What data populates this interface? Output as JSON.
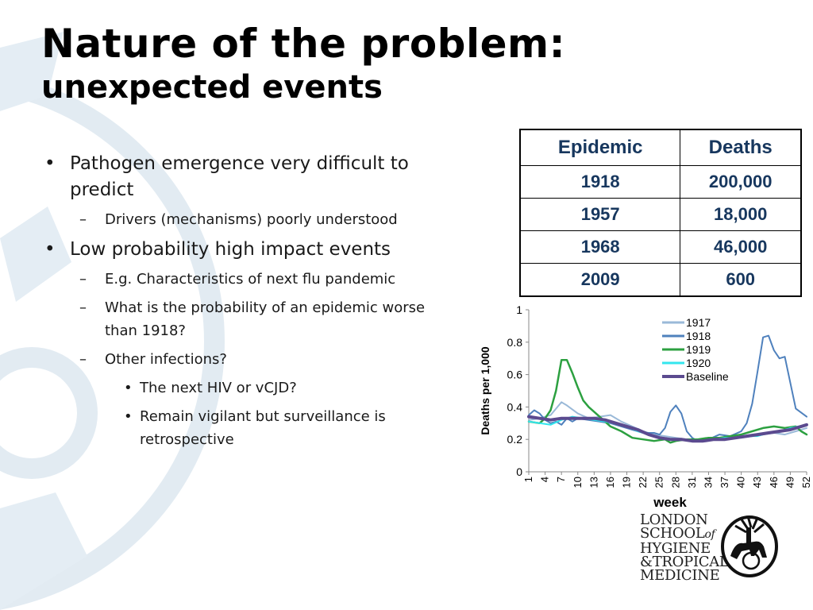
{
  "title": {
    "line1": "Nature of the problem:",
    "line2": "unexpected events"
  },
  "bullets": {
    "b1": "Pathogen emergence very difficult to predict",
    "b1_1": "Drivers (mechanisms) poorly understood",
    "b2": "Low probability high impact events",
    "b2_1": "E.g. Characteristics of next flu pandemic",
    "b2_2": "What is the probability of an epidemic worse than 1918?",
    "b2_3": "Other infections?",
    "b2_3_1": "The next HIV or vCJD?",
    "b2_3_2": "Remain vigilant but surveillance is retrospective"
  },
  "table": {
    "headers": [
      "Epidemic",
      "Deaths"
    ],
    "rows": [
      [
        "1918",
        "200,000"
      ],
      [
        "1957",
        "18,000"
      ],
      [
        "1968",
        "46,000"
      ],
      [
        "2009",
        "600"
      ]
    ]
  },
  "logo": {
    "lines": [
      "LONDON",
      "SCHOOL",
      "of",
      "HYGIENE",
      "&TROPICAL",
      "MEDICINE"
    ],
    "seal": "school-seal"
  },
  "chart_data": {
    "type": "line",
    "ylabel": "Deaths per 1,000",
    "xlabel": "week",
    "ylim": [
      0,
      1
    ],
    "yticks": [
      0,
      0.2,
      0.4,
      0.6,
      0.8,
      1
    ],
    "ytick_labels": [
      "0",
      "0.2",
      "0.4",
      "0.6",
      "0.8",
      "1"
    ],
    "xticks": [
      1,
      4,
      7,
      10,
      13,
      16,
      19,
      22,
      25,
      28,
      31,
      34,
      37,
      40,
      43,
      46,
      49,
      52
    ],
    "xlim": [
      1,
      52
    ],
    "legend_position": "top-right",
    "series": [
      {
        "name": "1917",
        "color": "#9ab9d8",
        "width": 2,
        "x": [
          1,
          3,
          5,
          7,
          8,
          10,
          12,
          14,
          16,
          18,
          20,
          22,
          24,
          26,
          28,
          30,
          32,
          34,
          36,
          38,
          40,
          42,
          44,
          46,
          48,
          50,
          52
        ],
        "y": [
          0.32,
          0.33,
          0.35,
          0.43,
          0.41,
          0.36,
          0.33,
          0.34,
          0.35,
          0.31,
          0.28,
          0.25,
          0.23,
          0.22,
          0.21,
          0.2,
          0.2,
          0.2,
          0.21,
          0.22,
          0.21,
          0.22,
          0.23,
          0.24,
          0.23,
          0.25,
          0.27
        ]
      },
      {
        "name": "1918",
        "color": "#4f81bd",
        "width": 2,
        "x": [
          1,
          2,
          3,
          4,
          5,
          6,
          7,
          8,
          9,
          10,
          12,
          14,
          16,
          18,
          20,
          22,
          24,
          25,
          26,
          27,
          28,
          29,
          30,
          31,
          32,
          34,
          36,
          38,
          40,
          41,
          42,
          43,
          44,
          45,
          46,
          47,
          48,
          50,
          52
        ],
        "y": [
          0.35,
          0.38,
          0.36,
          0.32,
          0.3,
          0.31,
          0.29,
          0.33,
          0.31,
          0.33,
          0.32,
          0.31,
          0.3,
          0.28,
          0.26,
          0.24,
          0.24,
          0.23,
          0.27,
          0.37,
          0.41,
          0.36,
          0.25,
          0.21,
          0.19,
          0.2,
          0.23,
          0.22,
          0.25,
          0.3,
          0.42,
          0.62,
          0.83,
          0.84,
          0.75,
          0.7,
          0.71,
          0.39,
          0.34
        ]
      },
      {
        "name": "1919",
        "color": "#2ca040",
        "width": 2.5,
        "x": [
          1,
          3,
          4,
          5,
          6,
          7,
          8,
          9,
          10,
          11,
          12,
          14,
          16,
          18,
          20,
          22,
          24,
          26,
          27,
          28,
          30,
          32,
          34,
          36,
          38,
          40,
          42,
          44,
          46,
          48,
          50,
          51,
          52
        ],
        "y": [
          0.31,
          0.3,
          0.33,
          0.38,
          0.5,
          0.69,
          0.69,
          0.61,
          0.52,
          0.44,
          0.4,
          0.34,
          0.28,
          0.25,
          0.21,
          0.2,
          0.19,
          0.2,
          0.18,
          0.19,
          0.2,
          0.2,
          0.21,
          0.21,
          0.22,
          0.23,
          0.25,
          0.27,
          0.28,
          0.27,
          0.28,
          0.25,
          0.23
        ]
      },
      {
        "name": "1920",
        "color": "#33e6ee",
        "width": 2,
        "x": [
          1,
          3,
          5,
          7,
          9,
          11,
          13,
          15,
          17,
          19,
          21,
          23,
          25,
          27,
          29,
          31,
          33,
          35,
          37,
          39,
          41,
          43,
          45,
          47,
          49,
          52
        ],
        "y": [
          0.31,
          0.3,
          0.29,
          0.32,
          0.34,
          0.33,
          0.32,
          0.31,
          0.3,
          0.28,
          0.25,
          0.23,
          0.21,
          0.2,
          0.2,
          0.19,
          0.19,
          0.2,
          0.21,
          0.21,
          0.22,
          0.22,
          0.24,
          0.25,
          0.27,
          0.29
        ]
      },
      {
        "name": "Baseline",
        "color": "#5b4a8f",
        "width": 4,
        "x": [
          1,
          3,
          5,
          7,
          9,
          11,
          13,
          15,
          17,
          19,
          21,
          23,
          25,
          27,
          29,
          31,
          33,
          35,
          37,
          39,
          41,
          43,
          45,
          47,
          49,
          51,
          52
        ],
        "y": [
          0.34,
          0.33,
          0.32,
          0.33,
          0.33,
          0.33,
          0.33,
          0.32,
          0.3,
          0.28,
          0.26,
          0.23,
          0.21,
          0.2,
          0.2,
          0.19,
          0.19,
          0.2,
          0.2,
          0.21,
          0.22,
          0.23,
          0.24,
          0.25,
          0.26,
          0.28,
          0.29
        ]
      }
    ]
  }
}
